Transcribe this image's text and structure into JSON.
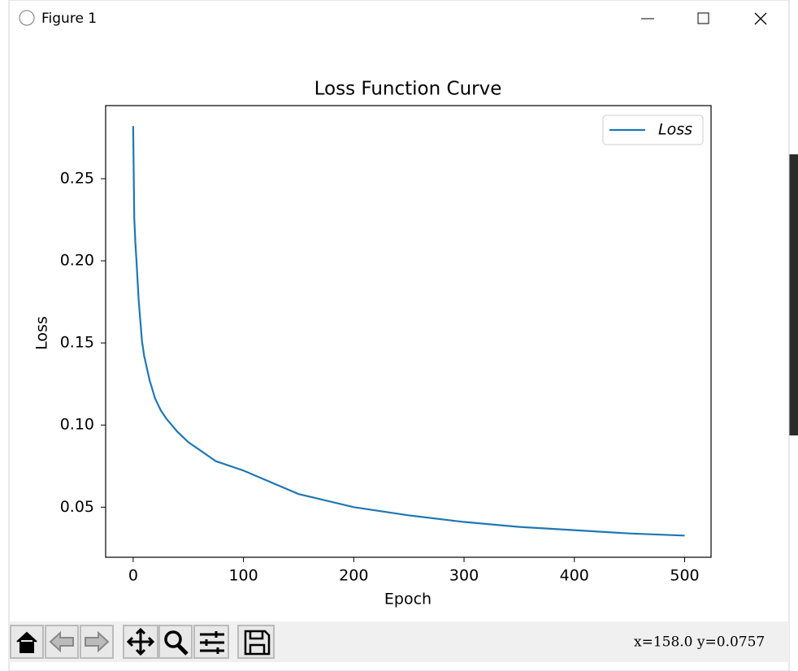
{
  "window": {
    "title": "Figure 1",
    "coordinates": "x=158.0  y=0.0757"
  },
  "chart_data": {
    "type": "line",
    "title": "Loss Function Curve",
    "x_label": "Epoch",
    "y_label": "Loss",
    "x": [
      0,
      1,
      2,
      3,
      5,
      8,
      10,
      15,
      20,
      25,
      30,
      40,
      50,
      75,
      100,
      150,
      200,
      250,
      300,
      350,
      400,
      450,
      500
    ],
    "series": [
      {
        "name": "Loss",
        "color": "#1f77b4",
        "values": [
          0.282,
          0.226,
          0.211,
          0.2,
          0.176,
          0.151,
          0.142,
          0.127,
          0.116,
          0.109,
          0.104,
          0.096,
          0.0896,
          0.078,
          0.0723,
          0.058,
          0.05,
          0.045,
          0.041,
          0.038,
          0.036,
          0.034,
          0.0327
        ]
      }
    ],
    "xlim": [
      -24.95,
      523.95
    ],
    "ylim": [
      0.0195,
      0.2945
    ],
    "xticks": [
      0,
      100,
      200,
      300,
      400,
      500
    ],
    "yticks": [
      {
        "value": 0.05,
        "label": "0.05"
      },
      {
        "value": 0.1,
        "label": "0.10"
      },
      {
        "value": 0.15,
        "label": "0.15"
      },
      {
        "value": 0.2,
        "label": "0.20"
      },
      {
        "value": 0.25,
        "label": "0.25"
      }
    ],
    "legend": "upper right",
    "grid": false
  }
}
